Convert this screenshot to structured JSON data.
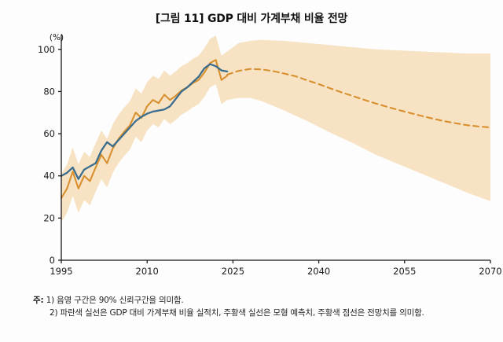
{
  "title": "[그림 11] GDP 대비 가계부채 비율 전망",
  "chart_data": {
    "type": "line",
    "title": "[그림 11] GDP 대비 가계부채 비율 전망",
    "unit_label": "(%)",
    "xlim": [
      1995,
      2070
    ],
    "ylim": [
      0,
      100
    ],
    "x_ticks": [
      1995,
      2010,
      2025,
      2040,
      2055,
      2070
    ],
    "y_ticks": [
      0,
      20,
      40,
      60,
      80,
      100
    ],
    "grid": false,
    "legend": "none",
    "colors": {
      "band": "#f7e3c3",
      "actual": "#3a6d8e",
      "model": "#d8902f"
    },
    "band": {
      "label": "90% 신뢰구간",
      "years": [
        1995,
        1996,
        1997,
        1998,
        1999,
        2000,
        2001,
        2002,
        2003,
        2004,
        2005,
        2006,
        2007,
        2008,
        2009,
        2010,
        2011,
        2012,
        2013,
        2014,
        2015,
        2016,
        2017,
        2018,
        2019,
        2020,
        2021,
        2022,
        2023,
        2024,
        2026,
        2028,
        2030,
        2034,
        2038,
        2042,
        2046,
        2050,
        2054,
        2058,
        2062,
        2066,
        2070
      ],
      "lower": [
        18,
        22.5,
        30.5,
        22.5,
        28.5,
        26,
        32.5,
        38.5,
        34.5,
        41.5,
        46,
        49.5,
        52.5,
        58.5,
        56,
        61.5,
        64.5,
        63,
        67,
        64.5,
        66.5,
        69,
        70.5,
        72.5,
        74,
        77.5,
        82,
        83.5,
        74,
        76,
        77,
        77,
        75.5,
        71,
        66,
        60.5,
        55.5,
        50,
        45.5,
        41,
        36.5,
        32,
        28
      ],
      "upper": [
        41,
        45.5,
        53.5,
        45.5,
        51.5,
        49,
        55.5,
        61.5,
        57.5,
        64.5,
        69,
        72.5,
        75.5,
        81.5,
        79,
        84.5,
        87.5,
        86,
        90,
        87.5,
        89.5,
        92,
        93.5,
        95.5,
        97,
        100.5,
        105,
        106.5,
        97,
        99,
        103,
        104,
        104.5,
        104,
        103,
        102,
        101,
        100,
        99.5,
        99,
        98.5,
        98,
        98
      ]
    },
    "series": [
      {
        "name": "GDP 대비 가계부채 비율 실적치",
        "style": "solid",
        "color_key": "actual",
        "x": [
          1995,
          1996,
          1997,
          1998,
          1999,
          2000,
          2001,
          2002,
          2003,
          2004,
          2005,
          2006,
          2007,
          2008,
          2009,
          2010,
          2011,
          2012,
          2013,
          2014,
          2015,
          2016,
          2017,
          2018,
          2019,
          2020,
          2021,
          2022,
          2023,
          2024
        ],
        "y": [
          40,
          41.5,
          44,
          38.5,
          43,
          44.5,
          46,
          52,
          56,
          54,
          57,
          60,
          63,
          66,
          68,
          69.5,
          70.5,
          71,
          71.5,
          73,
          76.5,
          80,
          82,
          84.5,
          87,
          91,
          93,
          92,
          90,
          89.5
        ]
      },
      {
        "name": "모형 예측치",
        "style": "solid",
        "color_key": "model",
        "x": [
          1995,
          1996,
          1997,
          1998,
          1999,
          2000,
          2001,
          2002,
          2003,
          2004,
          2005,
          2006,
          2007,
          2008,
          2009,
          2010,
          2011,
          2012,
          2013,
          2014,
          2015,
          2016,
          2017,
          2018,
          2019,
          2020,
          2021,
          2022,
          2023,
          2024
        ],
        "y": [
          29.5,
          34,
          42,
          34,
          40,
          37.5,
          44,
          50,
          46,
          53,
          57.5,
          61,
          64,
          70,
          67.5,
          73,
          76,
          74.5,
          78.5,
          76,
          78,
          80.5,
          82,
          84,
          85.5,
          89,
          93.5,
          95,
          85.5,
          87.5
        ]
      },
      {
        "name": "전망치",
        "style": "dashed",
        "color_key": "model",
        "x": [
          2024,
          2026,
          2028,
          2030,
          2032,
          2034,
          2036,
          2038,
          2040,
          2042,
          2044,
          2046,
          2048,
          2050,
          2052,
          2054,
          2056,
          2058,
          2060,
          2062,
          2064,
          2066,
          2068,
          2070
        ],
        "y": [
          88,
          89.8,
          90.7,
          90.5,
          89.7,
          88.5,
          87.2,
          85.3,
          83.5,
          81.5,
          79.6,
          77.8,
          76,
          74.3,
          72.7,
          71.2,
          69.8,
          68.4,
          67.1,
          65.9,
          64.9,
          64,
          63.4,
          63
        ]
      }
    ]
  },
  "notes": {
    "prefix": "주:",
    "line1": "1) 음영 구간은 90% 신뢰구간을 의미함.",
    "line2": "2) 파란색 실선은 GDP 대비 가계부채 비율 실적치, 주황색 실선은 모형 예측치, 주황색 점선은 전망치를 의미함."
  }
}
